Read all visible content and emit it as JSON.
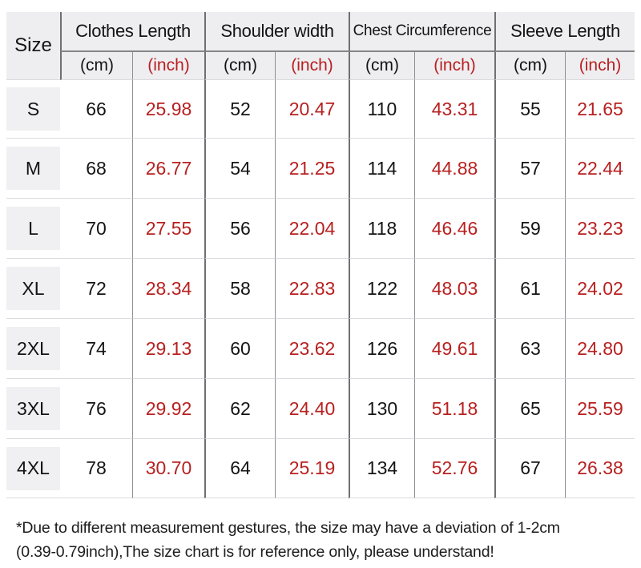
{
  "table": {
    "size_header": "Size",
    "groups": [
      {
        "label": "Clothes Length"
      },
      {
        "label": "Shoulder width"
      },
      {
        "label": "Chest Circumference"
      },
      {
        "label": "Sleeve Length"
      }
    ],
    "unit_cm": "(cm)",
    "unit_inch": "(inch)",
    "rows": [
      {
        "size": "S",
        "values": [
          "66",
          "25.98",
          "52",
          "20.47",
          "110",
          "43.31",
          "55",
          "21.65"
        ]
      },
      {
        "size": "M",
        "values": [
          "68",
          "26.77",
          "54",
          "21.25",
          "114",
          "44.88",
          "57",
          "22.44"
        ]
      },
      {
        "size": "L",
        "values": [
          "70",
          "27.55",
          "56",
          "22.04",
          "118",
          "46.46",
          "59",
          "23.23"
        ]
      },
      {
        "size": "XL",
        "values": [
          "72",
          "28.34",
          "58",
          "22.83",
          "122",
          "48.03",
          "61",
          "24.02"
        ]
      },
      {
        "size": "2XL",
        "values": [
          "74",
          "29.13",
          "60",
          "23.62",
          "126",
          "49.61",
          "63",
          "24.80"
        ]
      },
      {
        "size": "3XL",
        "values": [
          "76",
          "29.92",
          "62",
          "24.40",
          "130",
          "51.18",
          "65",
          "25.59"
        ]
      },
      {
        "size": "4XL",
        "values": [
          "78",
          "30.70",
          "64",
          "25.19",
          "134",
          "52.76",
          "67",
          "26.38"
        ]
      }
    ]
  },
  "footnote": {
    "line1": "*Due to different measurement gestures, the size may have a deviation of 1-2cm",
    "line2": "(0.39-0.79inch),The size chart is for reference only, please understand!"
  },
  "colors": {
    "inch_red": "#b82020",
    "header_bg": "#eeeef1",
    "size_patch_bg": "#f0f0f3",
    "grid_strong": "#6f6f74",
    "grid_light": "#8f8f93",
    "row_divider": "#dcdce0",
    "text": "#141414"
  },
  "chart_data": {
    "type": "table",
    "title": "Garment size chart",
    "columns": [
      "Size",
      "Clothes Length (cm)",
      "Clothes Length (inch)",
      "Shoulder width (cm)",
      "Shoulder width (inch)",
      "Chest Circumference (cm)",
      "Chest Circumference (inch)",
      "Sleeve Length (cm)",
      "Sleeve Length (inch)"
    ],
    "rows": [
      [
        "S",
        66,
        25.98,
        52,
        20.47,
        110,
        43.31,
        55,
        21.65
      ],
      [
        "M",
        68,
        26.77,
        54,
        21.25,
        114,
        44.88,
        57,
        22.44
      ],
      [
        "L",
        70,
        27.55,
        56,
        22.04,
        118,
        46.46,
        59,
        23.23
      ],
      [
        "XL",
        72,
        28.34,
        58,
        22.83,
        122,
        48.03,
        61,
        24.02
      ],
      [
        "2XL",
        74,
        29.13,
        60,
        23.62,
        126,
        49.61,
        63,
        24.8
      ],
      [
        "3XL",
        76,
        29.92,
        62,
        24.4,
        130,
        51.18,
        65,
        25.59
      ],
      [
        "4XL",
        78,
        30.7,
        64,
        25.19,
        134,
        52.76,
        67,
        26.38
      ]
    ],
    "notes": "Values in (inch) columns are shown in red; cm values in black."
  }
}
